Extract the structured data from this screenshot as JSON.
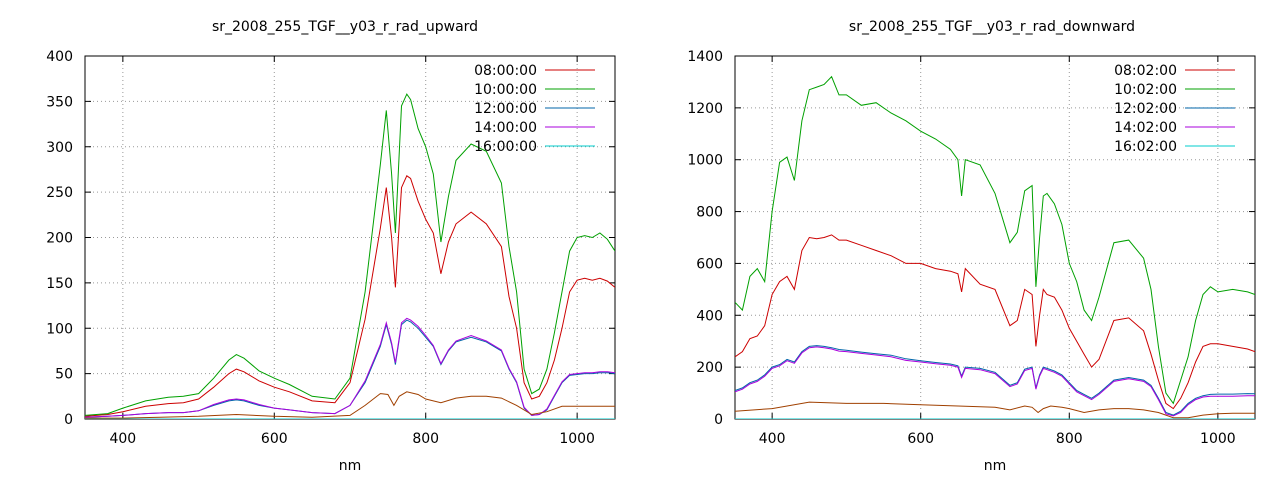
{
  "chart_data": [
    {
      "type": "line",
      "title": "sr_2008_255_TGF__y03_r_rad_upward",
      "xlabel": "nm",
      "ylabel": "",
      "xlim": [
        350,
        1050
      ],
      "ylim": [
        0,
        400
      ],
      "xticks": [
        400,
        600,
        800,
        1000
      ],
      "yticks": [
        0,
        50,
        100,
        150,
        200,
        250,
        300,
        350,
        400
      ],
      "grid": true,
      "legend_position": "top-right",
      "series": [
        {
          "name": "08:00:00",
          "color": "#cc0000",
          "x": [
            350,
            380,
            400,
            430,
            460,
            480,
            500,
            520,
            540,
            550,
            560,
            580,
            600,
            620,
            650,
            680,
            700,
            720,
            740,
            748,
            755,
            760,
            768,
            775,
            780,
            790,
            800,
            810,
            820,
            830,
            840,
            860,
            880,
            900,
            910,
            920,
            930,
            940,
            950,
            960,
            970,
            980,
            990,
            1000,
            1010,
            1020,
            1030,
            1040,
            1050
          ],
          "y": [
            3,
            5,
            8,
            14,
            17,
            18,
            22,
            35,
            50,
            55,
            52,
            42,
            35,
            30,
            20,
            18,
            40,
            110,
            210,
            255,
            200,
            145,
            255,
            268,
            265,
            240,
            220,
            205,
            160,
            195,
            215,
            228,
            215,
            190,
            135,
            100,
            40,
            22,
            25,
            40,
            65,
            100,
            140,
            153,
            155,
            153,
            155,
            152,
            145
          ]
        },
        {
          "name": "10:00:00",
          "color": "#00a000",
          "x": [
            350,
            380,
            400,
            430,
            460,
            480,
            500,
            520,
            540,
            550,
            560,
            580,
            600,
            620,
            650,
            680,
            700,
            720,
            740,
            748,
            755,
            760,
            768,
            775,
            780,
            790,
            800,
            810,
            820,
            830,
            840,
            860,
            880,
            900,
            910,
            920,
            930,
            940,
            950,
            960,
            970,
            980,
            990,
            1000,
            1010,
            1020,
            1030,
            1040,
            1050
          ],
          "y": [
            4,
            6,
            12,
            20,
            24,
            25,
            28,
            45,
            65,
            71,
            67,
            53,
            45,
            38,
            25,
            22,
            45,
            140,
            280,
            340,
            270,
            205,
            345,
            358,
            352,
            320,
            300,
            270,
            195,
            245,
            285,
            303,
            295,
            260,
            190,
            140,
            55,
            28,
            33,
            55,
            95,
            140,
            185,
            200,
            202,
            200,
            205,
            198,
            185
          ]
        },
        {
          "name": "12:00:00",
          "color": "#0066aa",
          "x": [
            350,
            380,
            400,
            430,
            460,
            480,
            500,
            520,
            540,
            550,
            560,
            580,
            600,
            620,
            650,
            680,
            700,
            720,
            740,
            748,
            755,
            760,
            768,
            775,
            780,
            790,
            800,
            810,
            820,
            830,
            840,
            860,
            880,
            900,
            910,
            920,
            930,
            940,
            950,
            960,
            970,
            980,
            990,
            1000,
            1010,
            1020,
            1030,
            1040,
            1050
          ],
          "y": [
            2,
            3,
            4,
            6,
            7,
            7,
            9,
            15,
            20,
            21,
            20,
            15,
            12,
            10,
            7,
            6,
            15,
            40,
            80,
            104,
            82,
            60,
            104,
            109,
            107,
            100,
            90,
            80,
            60,
            75,
            85,
            90,
            85,
            75,
            55,
            40,
            12,
            4,
            5,
            10,
            25,
            40,
            48,
            49,
            50,
            50,
            51,
            51,
            50
          ]
        },
        {
          "name": "14:00:00",
          "color": "#aa00dd",
          "x": [
            350,
            380,
            400,
            430,
            460,
            480,
            500,
            520,
            540,
            550,
            560,
            580,
            600,
            620,
            650,
            680,
            700,
            720,
            740,
            748,
            755,
            760,
            768,
            775,
            780,
            790,
            800,
            810,
            820,
            830,
            840,
            860,
            880,
            900,
            910,
            920,
            930,
            940,
            950,
            960,
            970,
            980,
            990,
            1000,
            1010,
            1020,
            1030,
            1040,
            1050
          ],
          "y": [
            2,
            3,
            4,
            6,
            7,
            7,
            9,
            16,
            21,
            22,
            21,
            16,
            12,
            10,
            7,
            6,
            15,
            42,
            82,
            106,
            84,
            62,
            106,
            111,
            109,
            102,
            92,
            81,
            61,
            76,
            86,
            92,
            86,
            76,
            56,
            41,
            13,
            4,
            5,
            11,
            26,
            41,
            49,
            50,
            51,
            51,
            52,
            52,
            51
          ]
        },
        {
          "name": "16:00:00",
          "color": "#00cccc",
          "x": [
            350,
            1050
          ],
          "y": [
            0,
            0
          ]
        },
        {
          "name": "",
          "color": "#a04000",
          "x": [
            350,
            400,
            450,
            500,
            550,
            600,
            650,
            700,
            720,
            740,
            750,
            758,
            765,
            775,
            790,
            800,
            820,
            840,
            860,
            880,
            900,
            920,
            940,
            960,
            980,
            1000,
            1020,
            1050
          ],
          "y": [
            1,
            1,
            2,
            3,
            5,
            3,
            2,
            4,
            15,
            28,
            27,
            15,
            25,
            30,
            27,
            22,
            18,
            23,
            25,
            25,
            23,
            15,
            5,
            8,
            14,
            14,
            14,
            14
          ]
        }
      ]
    },
    {
      "type": "line",
      "title": "sr_2008_255_TGF__y03_r_rad_downward",
      "xlabel": "nm",
      "ylabel": "",
      "xlim": [
        350,
        1050
      ],
      "ylim": [
        0,
        1400
      ],
      "xticks": [
        400,
        600,
        800,
        1000
      ],
      "yticks": [
        0,
        200,
        400,
        600,
        800,
        1000,
        1200,
        1400
      ],
      "grid": true,
      "legend_position": "top-right",
      "series": [
        {
          "name": "08:02:00",
          "color": "#cc0000",
          "x": [
            350,
            360,
            370,
            380,
            390,
            400,
            410,
            420,
            430,
            440,
            450,
            460,
            470,
            480,
            490,
            500,
            520,
            540,
            560,
            580,
            600,
            620,
            640,
            650,
            655,
            660,
            680,
            700,
            720,
            730,
            740,
            750,
            755,
            760,
            765,
            770,
            780,
            790,
            800,
            810,
            820,
            830,
            840,
            860,
            880,
            900,
            910,
            920,
            930,
            940,
            950,
            960,
            970,
            980,
            990,
            1000,
            1020,
            1040,
            1050
          ],
          "y": [
            240,
            260,
            310,
            320,
            360,
            480,
            530,
            550,
            500,
            650,
            700,
            695,
            700,
            710,
            690,
            690,
            670,
            650,
            630,
            600,
            600,
            580,
            570,
            560,
            490,
            580,
            520,
            500,
            360,
            380,
            500,
            480,
            280,
            400,
            500,
            480,
            470,
            420,
            350,
            300,
            250,
            200,
            230,
            380,
            390,
            340,
            250,
            150,
            60,
            40,
            80,
            140,
            220,
            280,
            290,
            290,
            280,
            270,
            260
          ]
        },
        {
          "name": "10:02:00",
          "color": "#00a000",
          "x": [
            350,
            360,
            370,
            380,
            390,
            400,
            410,
            420,
            430,
            440,
            450,
            460,
            470,
            480,
            490,
            500,
            520,
            540,
            560,
            580,
            600,
            620,
            640,
            650,
            655,
            660,
            680,
            700,
            720,
            730,
            740,
            750,
            755,
            760,
            765,
            770,
            780,
            790,
            800,
            810,
            820,
            830,
            840,
            860,
            880,
            900,
            910,
            920,
            930,
            940,
            950,
            960,
            970,
            980,
            990,
            1000,
            1020,
            1040,
            1050
          ],
          "y": [
            450,
            420,
            550,
            580,
            530,
            800,
            990,
            1010,
            920,
            1150,
            1270,
            1280,
            1290,
            1320,
            1250,
            1250,
            1210,
            1220,
            1180,
            1150,
            1110,
            1080,
            1040,
            1000,
            860,
            1000,
            980,
            870,
            680,
            720,
            880,
            900,
            510,
            700,
            860,
            870,
            830,
            750,
            600,
            530,
            420,
            380,
            470,
            680,
            690,
            620,
            500,
            280,
            100,
            60,
            150,
            240,
            380,
            480,
            510,
            490,
            500,
            490,
            480
          ]
        },
        {
          "name": "12:02:00",
          "color": "#0066aa",
          "x": [
            350,
            360,
            370,
            380,
            390,
            400,
            410,
            420,
            430,
            440,
            450,
            460,
            470,
            480,
            490,
            500,
            520,
            540,
            560,
            580,
            600,
            620,
            640,
            650,
            655,
            660,
            680,
            700,
            720,
            730,
            740,
            750,
            755,
            760,
            765,
            770,
            780,
            790,
            800,
            810,
            820,
            830,
            840,
            860,
            880,
            900,
            910,
            920,
            930,
            940,
            950,
            960,
            970,
            980,
            990,
            1000,
            1020,
            1040,
            1050
          ],
          "y": [
            110,
            120,
            140,
            150,
            170,
            200,
            210,
            230,
            220,
            260,
            280,
            283,
            280,
            275,
            268,
            265,
            258,
            252,
            246,
            232,
            225,
            218,
            212,
            205,
            165,
            200,
            195,
            180,
            130,
            140,
            192,
            200,
            120,
            170,
            200,
            195,
            185,
            170,
            140,
            110,
            95,
            80,
            100,
            150,
            160,
            150,
            130,
            80,
            25,
            15,
            30,
            60,
            80,
            90,
            95,
            96,
            96,
            98,
            97
          ]
        },
        {
          "name": "14:02:00",
          "color": "#aa00dd",
          "x": [
            350,
            360,
            370,
            380,
            390,
            400,
            410,
            420,
            430,
            440,
            450,
            460,
            470,
            480,
            490,
            500,
            520,
            540,
            560,
            580,
            600,
            620,
            640,
            650,
            655,
            660,
            680,
            700,
            720,
            730,
            740,
            750,
            755,
            760,
            765,
            770,
            780,
            790,
            800,
            810,
            820,
            830,
            840,
            860,
            880,
            900,
            910,
            920,
            930,
            940,
            950,
            960,
            970,
            980,
            990,
            1000,
            1020,
            1040,
            1050
          ],
          "y": [
            105,
            115,
            135,
            145,
            165,
            195,
            205,
            225,
            215,
            255,
            275,
            278,
            275,
            270,
            262,
            260,
            253,
            247,
            240,
            226,
            220,
            213,
            207,
            200,
            160,
            195,
            190,
            175,
            125,
            135,
            187,
            195,
            115,
            165,
            195,
            190,
            180,
            165,
            135,
            105,
            90,
            75,
            95,
            145,
            155,
            145,
            125,
            75,
            20,
            12,
            25,
            55,
            75,
            85,
            88,
            88,
            88,
            90,
            90
          ]
        },
        {
          "name": "16:02:00",
          "color": "#00cccc",
          "x": [
            350,
            1050
          ],
          "y": [
            0,
            0
          ]
        },
        {
          "name": "",
          "color": "#a04000",
          "x": [
            350,
            400,
            450,
            500,
            550,
            600,
            650,
            700,
            720,
            740,
            750,
            758,
            765,
            775,
            790,
            800,
            820,
            840,
            860,
            880,
            900,
            920,
            940,
            960,
            980,
            1000,
            1020,
            1050
          ],
          "y": [
            30,
            40,
            65,
            60,
            60,
            55,
            50,
            45,
            35,
            50,
            45,
            25,
            40,
            50,
            45,
            40,
            25,
            35,
            40,
            40,
            35,
            25,
            5,
            5,
            15,
            20,
            22,
            22
          ]
        }
      ]
    }
  ]
}
